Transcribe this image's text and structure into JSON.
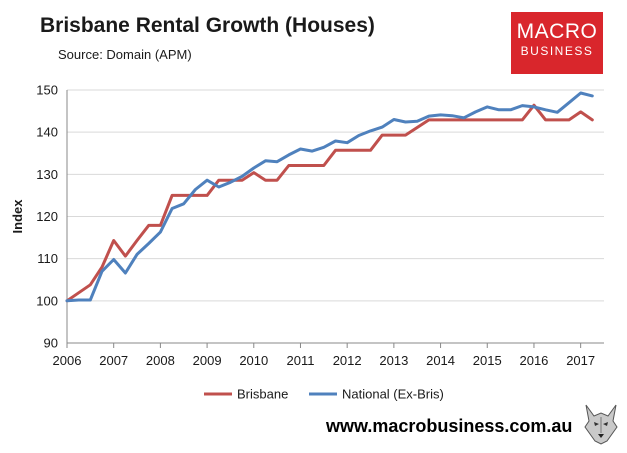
{
  "header": {
    "title": "Brisbane Rental Growth (Houses)",
    "subtitle": "Source: Domain (APM)"
  },
  "logo": {
    "line1": "MACRO",
    "line2": "BUSINESS",
    "color": "#d9262c"
  },
  "footer": {
    "url": "www.macrobusiness.com.au",
    "icon": "wolf-head-icon"
  },
  "chart_data": {
    "type": "line",
    "title": "Brisbane Rental Growth (Houses)",
    "subtitle": "Source: Domain (APM)",
    "xlabel": "",
    "ylabel": "Index",
    "xlim": [
      2006,
      2017.5
    ],
    "ylim": [
      90,
      150
    ],
    "x_ticks": [
      "2006",
      "2007",
      "2008",
      "2009",
      "2010",
      "2011",
      "2012",
      "2013",
      "2014",
      "2015",
      "2016",
      "2017"
    ],
    "y_ticks": [
      "90",
      "100",
      "110",
      "120",
      "130",
      "140",
      "150"
    ],
    "grid": "horizontal",
    "legend": "bottom",
    "series": [
      {
        "name": "Brisbane",
        "color": "#c0504d",
        "points": [
          [
            2006.0,
            100.0
          ],
          [
            2006.5,
            103.8
          ],
          [
            2006.75,
            108.0
          ],
          [
            2007.0,
            114.3
          ],
          [
            2007.25,
            110.6
          ],
          [
            2007.5,
            114.3
          ],
          [
            2007.75,
            117.9
          ],
          [
            2008.0,
            117.9
          ],
          [
            2008.25,
            125.0
          ],
          [
            2008.5,
            125.0
          ],
          [
            2008.75,
            125.0
          ],
          [
            2009.0,
            125.0
          ],
          [
            2009.25,
            128.6
          ],
          [
            2009.5,
            128.6
          ],
          [
            2009.75,
            128.6
          ],
          [
            2010.0,
            130.4
          ],
          [
            2010.25,
            128.6
          ],
          [
            2010.5,
            128.6
          ],
          [
            2010.75,
            132.1
          ],
          [
            2011.0,
            132.1
          ],
          [
            2011.25,
            132.1
          ],
          [
            2011.5,
            132.1
          ],
          [
            2011.75,
            135.7
          ],
          [
            2012.0,
            135.7
          ],
          [
            2012.25,
            135.7
          ],
          [
            2012.5,
            135.7
          ],
          [
            2012.75,
            139.3
          ],
          [
            2013.0,
            139.3
          ],
          [
            2013.25,
            139.3
          ],
          [
            2013.5,
            141.1
          ],
          [
            2013.75,
            142.9
          ],
          [
            2014.0,
            142.9
          ],
          [
            2014.25,
            142.9
          ],
          [
            2014.5,
            142.9
          ],
          [
            2014.75,
            142.9
          ],
          [
            2015.0,
            142.9
          ],
          [
            2015.25,
            142.9
          ],
          [
            2015.5,
            142.9
          ],
          [
            2015.75,
            142.9
          ],
          [
            2016.0,
            146.4
          ],
          [
            2016.25,
            142.9
          ],
          [
            2016.5,
            142.9
          ],
          [
            2016.75,
            142.9
          ],
          [
            2017.0,
            144.8
          ],
          [
            2017.25,
            142.9
          ]
        ]
      },
      {
        "name": "National (Ex-Bris)",
        "color": "#4f81bd",
        "points": [
          [
            2006.0,
            100.0
          ],
          [
            2006.25,
            100.2
          ],
          [
            2006.5,
            100.2
          ],
          [
            2006.75,
            107.0
          ],
          [
            2007.0,
            109.8
          ],
          [
            2007.25,
            106.6
          ],
          [
            2007.5,
            111.0
          ],
          [
            2007.75,
            113.6
          ],
          [
            2008.0,
            116.3
          ],
          [
            2008.25,
            121.9
          ],
          [
            2008.5,
            123.0
          ],
          [
            2008.75,
            126.4
          ],
          [
            2009.0,
            128.6
          ],
          [
            2009.25,
            127.0
          ],
          [
            2009.5,
            128.1
          ],
          [
            2009.75,
            129.5
          ],
          [
            2010.0,
            131.5
          ],
          [
            2010.25,
            133.2
          ],
          [
            2010.5,
            133.0
          ],
          [
            2010.75,
            134.6
          ],
          [
            2011.0,
            136.0
          ],
          [
            2011.25,
            135.5
          ],
          [
            2011.5,
            136.4
          ],
          [
            2011.75,
            137.9
          ],
          [
            2012.0,
            137.5
          ],
          [
            2012.25,
            139.2
          ],
          [
            2012.5,
            140.3
          ],
          [
            2012.75,
            141.2
          ],
          [
            2013.0,
            143.0
          ],
          [
            2013.25,
            142.4
          ],
          [
            2013.5,
            142.6
          ],
          [
            2013.75,
            143.8
          ],
          [
            2014.0,
            144.1
          ],
          [
            2014.25,
            143.9
          ],
          [
            2014.5,
            143.4
          ],
          [
            2014.75,
            144.8
          ],
          [
            2015.0,
            146.0
          ],
          [
            2015.25,
            145.3
          ],
          [
            2015.5,
            145.3
          ],
          [
            2015.75,
            146.3
          ],
          [
            2016.0,
            146.0
          ],
          [
            2016.25,
            145.3
          ],
          [
            2016.5,
            144.7
          ],
          [
            2016.75,
            147.0
          ],
          [
            2017.0,
            149.3
          ],
          [
            2017.25,
            148.6
          ]
        ]
      }
    ]
  }
}
